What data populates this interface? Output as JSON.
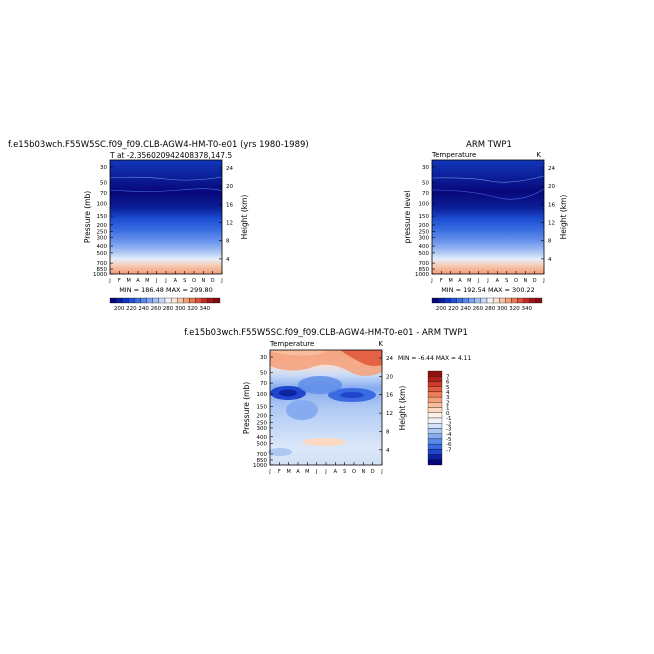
{
  "colors": {
    "temp_scale": [
      "#08087a",
      "#0a1d9c",
      "#0d36c2",
      "#1f52d8",
      "#3d6be0",
      "#5a86e8",
      "#7ea2ef",
      "#a3bff4",
      "#c8d9f8",
      "#eef2fb",
      "#fbe2d3",
      "#f7c3a6",
      "#f2a07b",
      "#e87857",
      "#dc513a",
      "#c42a23",
      "#a31518",
      "#801010"
    ],
    "diff_scale": [
      "#06067a",
      "#0e21a3",
      "#1f46cc",
      "#3a6ae0",
      "#5a8ae8",
      "#86abf0",
      "#aec8f4",
      "#d2e1f8",
      "#eff4fb",
      "#fdf0e6",
      "#fbd9c3",
      "#f8bd9d",
      "#f4a07b",
      "#ec7d58",
      "#e15b3e",
      "#cf3a28",
      "#b02019",
      "#8e1212"
    ]
  },
  "chart_data": [
    {
      "type": "heatmap",
      "title": "f.e15b03wch.F55W5SC.f09_f09.CLB-AGW4-HM-T0-e01 (yrs 1980-1989)",
      "subtitle": "T at -2.356020942408378,147.5",
      "ylabel": "Pressure (mb)",
      "y2label": "Height (km)",
      "x_ticks": [
        "J",
        "F",
        "M",
        "A",
        "M",
        "J",
        "J",
        "A",
        "S",
        "O",
        "N",
        "D",
        "J"
      ],
      "y_ticks": [
        "30",
        "50",
        "70",
        "100",
        "150",
        "200",
        "250",
        "300",
        "400",
        "500",
        "700",
        "850",
        "1000"
      ],
      "y2_ticks": [
        "24",
        "20",
        "16",
        "12",
        "8",
        "4"
      ],
      "stats": "MIN = 186.48 MAX = 299.80",
      "levels": [
        200,
        220,
        240,
        260,
        280,
        300,
        320,
        340
      ],
      "label_values": [
        200,
        220,
        240,
        260,
        280,
        300,
        320,
        340
      ]
    },
    {
      "type": "heatmap",
      "title": "ARM TWP1",
      "left_label": "Temperature",
      "right_label": "K",
      "ylabel": "pressure level",
      "y2label": "Height (km)",
      "x_ticks": [
        "J",
        "F",
        "M",
        "A",
        "M",
        "J",
        "J",
        "A",
        "S",
        "O",
        "N",
        "D",
        "J"
      ],
      "y_ticks": [
        "30",
        "50",
        "70",
        "100",
        "150",
        "200",
        "250",
        "300",
        "400",
        "500",
        "700",
        "850",
        "1000"
      ],
      "y2_ticks": [
        "24",
        "20",
        "16",
        "12",
        "8",
        "4"
      ],
      "stats": "MIN = 192.54 MAX = 300.22",
      "label_values": [
        200,
        220,
        240,
        260,
        280,
        300,
        320,
        340
      ]
    },
    {
      "type": "heatmap",
      "title": "f.e15b03wch.F55W5SC.f09_f09.CLB-AGW4-HM-T0-e01 - ARM TWP1",
      "left_label": "Temperature",
      "right_label": "K",
      "ylabel": "Pressure (mb)",
      "y2label": "Height (km)",
      "x_ticks": [
        "J",
        "F",
        "M",
        "A",
        "M",
        "J",
        "J",
        "A",
        "S",
        "O",
        "N",
        "D",
        "J"
      ],
      "y_ticks": [
        "30",
        "50",
        "70",
        "100",
        "150",
        "200",
        "250",
        "300",
        "400",
        "500",
        "700",
        "850",
        "1000"
      ],
      "y2_ticks": [
        "24",
        "20",
        "16",
        "12",
        "8",
        "4"
      ],
      "stats": "MIN = -6.44 MAX = 4.11",
      "label_values": [
        "7",
        "6",
        "5",
        "4",
        "3",
        "2",
        "1",
        "0",
        "-1",
        "-2",
        "-3",
        "-4",
        "-5",
        "-6",
        "-7"
      ]
    }
  ]
}
